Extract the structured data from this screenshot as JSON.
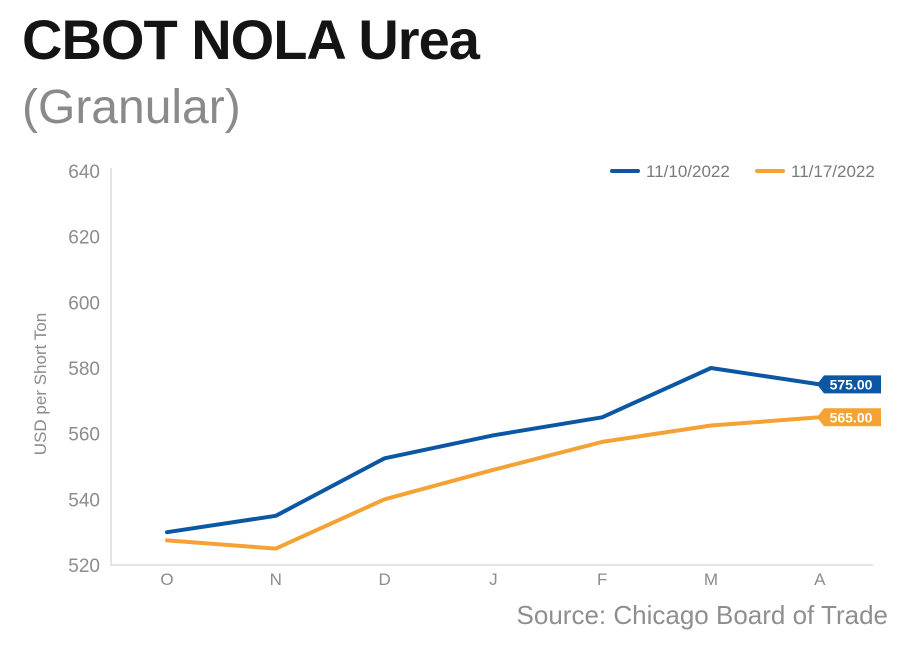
{
  "title": "CBOT NOLA Urea",
  "subtitle": "(Granular)",
  "source": "Source: Chicago Board of Trade",
  "colors": {
    "series_1": "#0b57a4",
    "series_2": "#f4a233",
    "axis": "#c8c8c8",
    "tick_text": "#8c8c8c"
  },
  "chart_data": {
    "type": "line",
    "x": [
      "O",
      "N",
      "D",
      "J",
      "F",
      "M",
      "A"
    ],
    "ylabel": "USD per Short Ton",
    "xlabel": "",
    "ylim": [
      520,
      640
    ],
    "yticks": [
      520,
      540,
      560,
      580,
      600,
      620,
      640
    ],
    "grid": false,
    "legend_position": "top-right",
    "series": [
      {
        "name": "11/10/2022",
        "color": "#0b57a4",
        "values": [
          530,
          535,
          552.5,
          559.5,
          565,
          580,
          575
        ],
        "end_label": "575.00"
      },
      {
        "name": "11/17/2022",
        "color": "#f4a233",
        "values": [
          527.5,
          525,
          540,
          549,
          557.5,
          562.5,
          565
        ],
        "end_label": "565.00"
      }
    ]
  }
}
